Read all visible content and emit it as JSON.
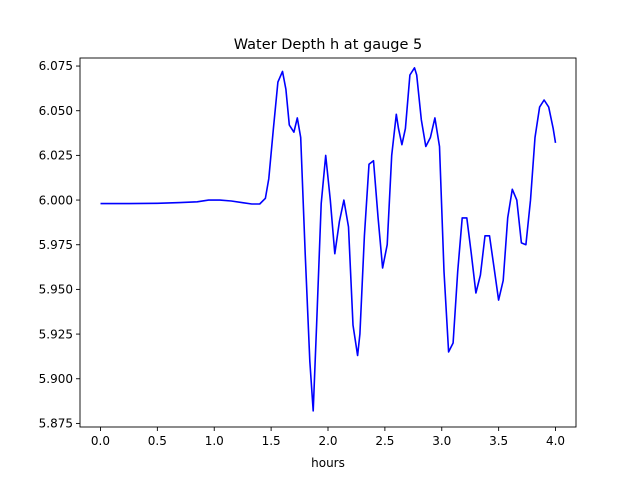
{
  "chart_data": {
    "type": "line",
    "title": "Water Depth h at gauge 5",
    "xlabel": "hours",
    "ylabel": "",
    "xlim": [
      -0.18,
      4.18
    ],
    "ylim": [
      5.873,
      6.0795
    ],
    "xticks": [
      0.0,
      0.5,
      1.0,
      1.5,
      2.0,
      2.5,
      3.0,
      3.5,
      4.0
    ],
    "xtick_labels": [
      "0.0",
      "0.5",
      "1.0",
      "1.5",
      "2.0",
      "2.5",
      "3.0",
      "3.5",
      "4.0"
    ],
    "yticks": [
      5.875,
      5.9,
      5.925,
      5.95,
      5.975,
      6.0,
      6.025,
      6.05,
      6.075
    ],
    "ytick_labels": [
      "5.875",
      "5.900",
      "5.925",
      "5.950",
      "5.975",
      "6.000",
      "6.025",
      "6.050",
      "6.075"
    ],
    "grid": false,
    "series": [
      {
        "color": "#0000ff",
        "x": [
          0.0,
          0.25,
          0.5,
          0.7,
          0.85,
          0.95,
          1.05,
          1.15,
          1.25,
          1.33,
          1.4,
          1.45,
          1.48,
          1.52,
          1.56,
          1.6,
          1.63,
          1.66,
          1.7,
          1.73,
          1.76,
          1.8,
          1.84,
          1.87,
          1.9,
          1.94,
          1.98,
          2.02,
          2.06,
          2.1,
          2.14,
          2.18,
          2.22,
          2.26,
          2.28,
          2.32,
          2.36,
          2.4,
          2.44,
          2.48,
          2.52,
          2.56,
          2.6,
          2.62,
          2.65,
          2.68,
          2.72,
          2.76,
          2.78,
          2.82,
          2.86,
          2.9,
          2.94,
          2.98,
          3.02,
          3.06,
          3.1,
          3.14,
          3.18,
          3.22,
          3.26,
          3.3,
          3.34,
          3.38,
          3.42,
          3.46,
          3.5,
          3.54,
          3.58,
          3.62,
          3.66,
          3.7,
          3.74,
          3.78,
          3.82,
          3.86,
          3.9,
          3.94,
          3.98,
          4.0
        ],
        "y": [
          5.998,
          5.998,
          5.9982,
          5.9986,
          5.999,
          6.0,
          6.0,
          5.9995,
          5.9985,
          5.9978,
          5.9978,
          6.001,
          6.012,
          6.04,
          6.066,
          6.072,
          6.062,
          6.042,
          6.038,
          6.046,
          6.035,
          5.97,
          5.91,
          5.882,
          5.93,
          5.998,
          6.025,
          6.0,
          5.97,
          5.988,
          6.0,
          5.985,
          5.93,
          5.913,
          5.925,
          5.98,
          6.02,
          6.022,
          5.99,
          5.962,
          5.975,
          6.025,
          6.048,
          6.04,
          6.031,
          6.04,
          6.07,
          6.074,
          6.07,
          6.045,
          6.03,
          6.035,
          6.046,
          6.03,
          5.96,
          5.915,
          5.92,
          5.96,
          5.99,
          5.99,
          5.97,
          5.948,
          5.958,
          5.98,
          5.98,
          5.962,
          5.944,
          5.955,
          5.99,
          6.006,
          6.0,
          5.976,
          5.975,
          6.0,
          6.035,
          6.052,
          6.056,
          6.052,
          6.04,
          6.032
        ]
      }
    ]
  }
}
